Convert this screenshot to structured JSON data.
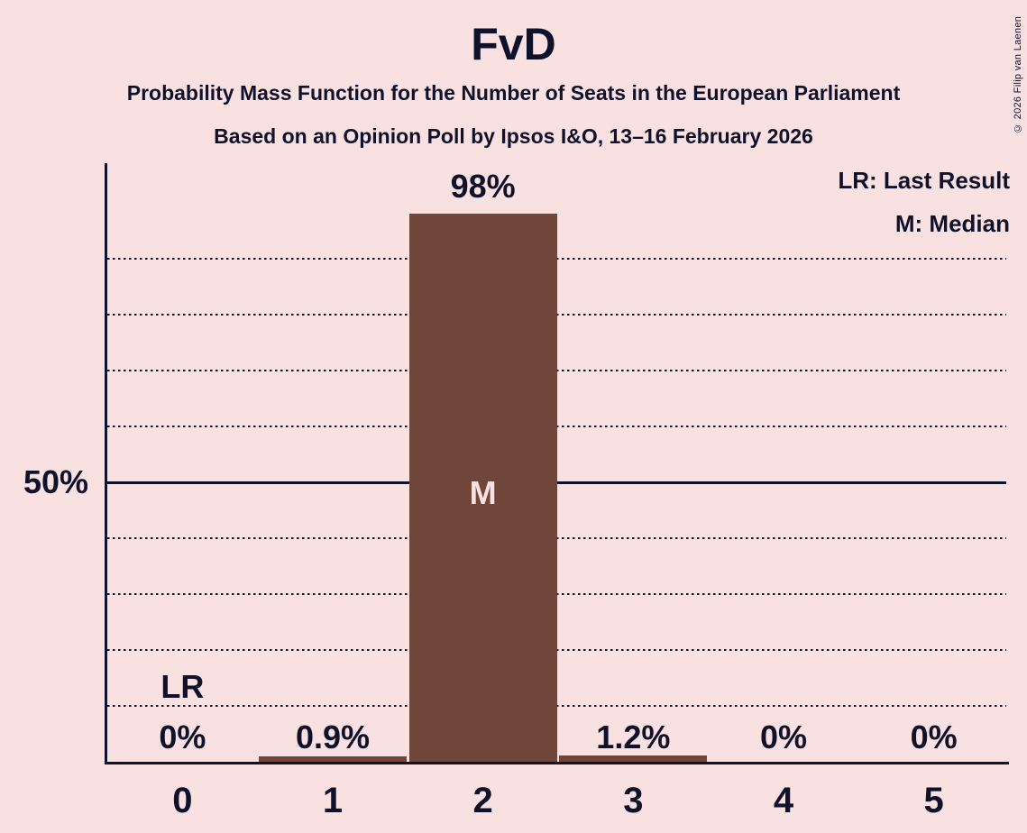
{
  "header": {
    "title": "FvD",
    "subtitle1": "Probability Mass Function for the Number of Seats in the European Parliament",
    "subtitle2": "Based on an Opinion Poll by Ipsos I&O, 13–16 February 2026"
  },
  "legend": {
    "last_result": "LR: Last Result",
    "median": "M: Median"
  },
  "copyright": "© 2026 Filip van Laenen",
  "colors": {
    "background": "#FAE1E1",
    "bar": "#6F4639",
    "ink": "#10122B",
    "bar_label": "#FAE1E1"
  },
  "chart_data": {
    "type": "bar",
    "title": "FvD",
    "categories": [
      "0",
      "1",
      "2",
      "3",
      "4",
      "5"
    ],
    "values": [
      0,
      0.9,
      98,
      1.2,
      0,
      0
    ],
    "value_labels": [
      "0%",
      "0.9%",
      "98%",
      "1.2%",
      "0%",
      "0%"
    ],
    "xlabel": "",
    "ylabel": "",
    "ylim": [
      0,
      107
    ],
    "y_tick": {
      "percent": 50,
      "label": "50%"
    },
    "grid": {
      "style": "dotted",
      "step_percent": 10,
      "min_percent": 10,
      "max_percent": 90,
      "solid_percent": 50
    },
    "markers": {
      "median_index": 2,
      "median_label": "M",
      "last_result_index": 0,
      "last_result_label": "LR"
    },
    "legend_position": "top-right"
  }
}
